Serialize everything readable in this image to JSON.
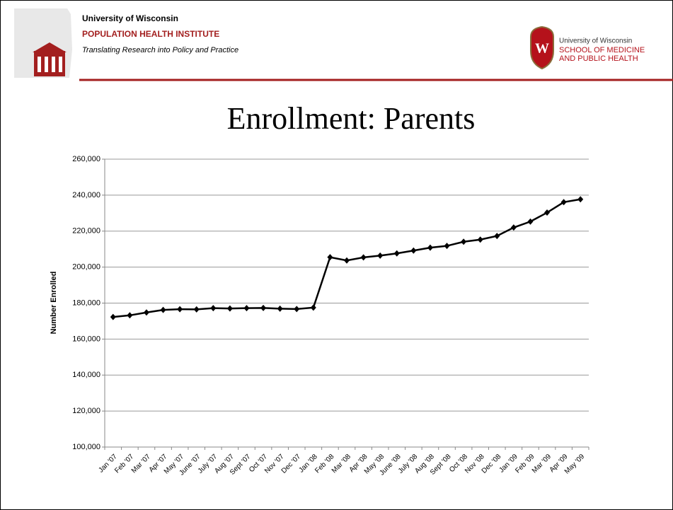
{
  "header": {
    "left": {
      "line1": "University of Wisconsin",
      "line2": "POPULATION HEALTH INSTITUTE",
      "line3": "Translating Research into Policy and Practice"
    },
    "right": {
      "crest": "W",
      "line1": "University of Wisconsin",
      "line2": "SCHOOL OF MEDICINE",
      "line3": "AND PUBLIC HEALTH"
    }
  },
  "chart_data": {
    "type": "line",
    "title": "Enrollment: Parents",
    "y_label": "Number Enrolled",
    "categories": [
      "Jan '07",
      "Feb '07",
      "Mar '07",
      "Apr '07",
      "May '07",
      "June '07",
      "July '07",
      "Aug '07",
      "Sept '07",
      "Oct '07",
      "Nov '07",
      "Dec '07",
      "Jan '08",
      "Feb '08",
      "Mar '08",
      "Apr '08",
      "May '08",
      "June '08",
      "July '08",
      "Aug '08",
      "Sept '08",
      "Oct '08",
      "Nov '08",
      "Dec '08",
      "Jan '09",
      "Feb '09",
      "Mar '09",
      "Apr '09",
      "May '09"
    ],
    "series": [
      {
        "name": "Parents",
        "color": "#000000",
        "values": [
          172300,
          173200,
          174800,
          176200,
          176600,
          176500,
          177200,
          177000,
          177200,
          177300,
          176900,
          176700,
          177500,
          205500,
          203700,
          205400,
          206400,
          207600,
          209200,
          210800,
          211800,
          214100,
          215300,
          217300,
          222000,
          225300,
          230300,
          236100,
          237700
        ]
      }
    ],
    "ylim": [
      100000,
      260000
    ],
    "yticks": [
      {
        "value": 100000,
        "label": "100,000"
      },
      {
        "value": 120000,
        "label": "120,000"
      },
      {
        "value": 140000,
        "label": "140,000"
      },
      {
        "value": 160000,
        "label": "160,000"
      },
      {
        "value": 180000,
        "label": "180,000"
      },
      {
        "value": 200000,
        "label": "200,000"
      },
      {
        "value": 220000,
        "label": "220,000"
      },
      {
        "value": 240000,
        "label": "240,000"
      },
      {
        "value": 260000,
        "label": "260,000"
      }
    ],
    "grid": true
  }
}
